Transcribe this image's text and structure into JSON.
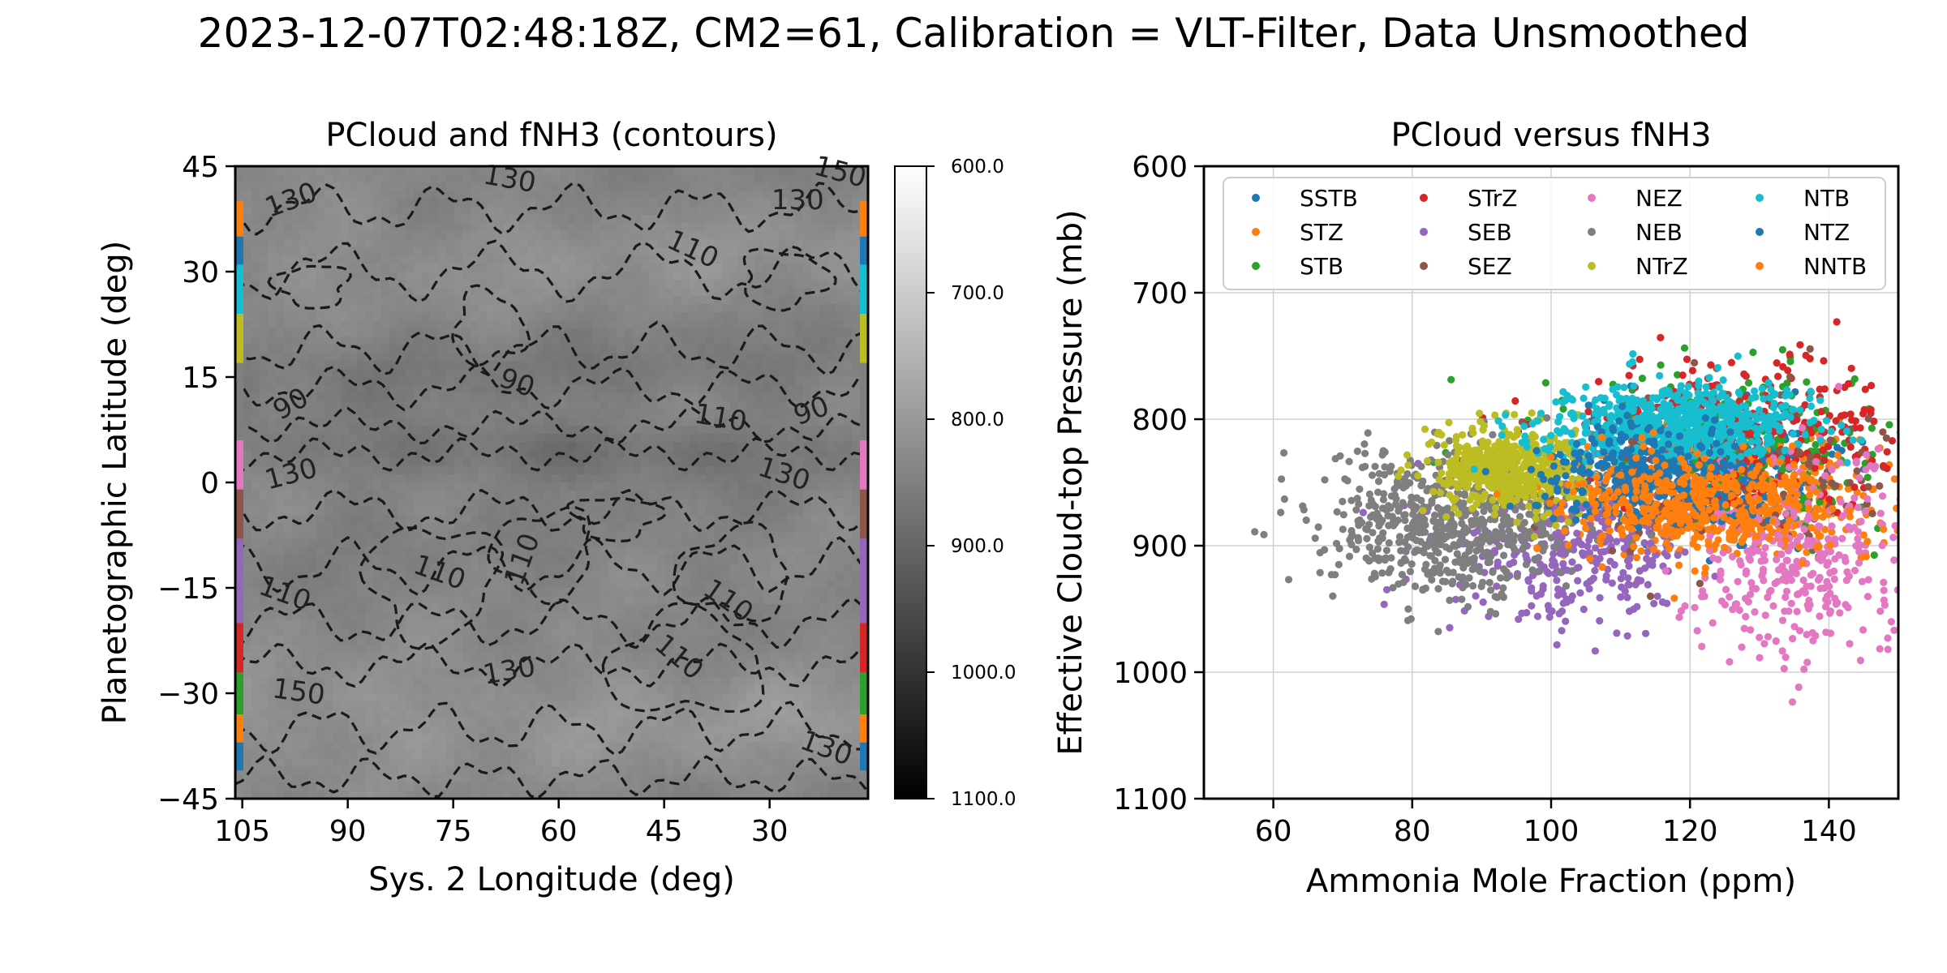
{
  "suptitle": "2023-12-07T02:48:18Z, CM2=61, Calibration = VLT-Filter, Data Unsmoothed",
  "chart_data": [
    {
      "type": "heatmap",
      "title": "PCloud and fNH3 (contours)",
      "xlabel": "Sys. 2 Longitude (deg)",
      "ylabel": "Planetographic Latitude (deg)",
      "xlim": [
        106,
        16
      ],
      "ylim": [
        -45,
        45
      ],
      "xticks": [
        105,
        90,
        75,
        60,
        45,
        30
      ],
      "xtick_labels": [
        "105",
        "90",
        "75",
        "60",
        "45",
        "30"
      ],
      "yticks": [
        45,
        30,
        15,
        0,
        -15,
        -30,
        -45
      ],
      "ytick_labels": [
        "45",
        "30",
        "15",
        "0",
        "−15",
        "−30",
        "−45"
      ],
      "colormap": "gray_r",
      "colorbar": {
        "range": [
          600,
          1100
        ],
        "ticks": [
          600,
          700,
          800,
          900,
          1000,
          1100
        ],
        "tick_labels": [
          "600.0",
          "700.0",
          "800.0",
          "900.0",
          "1000.0",
          "1100.0"
        ]
      },
      "contour_style": "dashed",
      "contour_labels": [
        {
          "text": "130",
          "lon": 98,
          "lat": 40
        },
        {
          "text": "130",
          "lon": 67,
          "lat": 43
        },
        {
          "text": "130",
          "lon": 26,
          "lat": 40
        },
        {
          "text": "150",
          "lon": 20,
          "lat": 44
        },
        {
          "text": "110",
          "lon": 41,
          "lat": 33
        },
        {
          "text": "90",
          "lon": 66,
          "lat": 14
        },
        {
          "text": "90",
          "lon": 98,
          "lat": 11
        },
        {
          "text": "90",
          "lon": 24,
          "lat": 10
        },
        {
          "text": "110",
          "lon": 37,
          "lat": 9
        },
        {
          "text": "130",
          "lon": 28,
          "lat": 1
        },
        {
          "text": "130",
          "lon": 98,
          "lat": 1
        },
        {
          "text": "110",
          "lon": 65,
          "lat": -11
        },
        {
          "text": "110",
          "lon": 77,
          "lat": -13
        },
        {
          "text": "110",
          "lon": 36,
          "lat": -17
        },
        {
          "text": "110",
          "lon": 99,
          "lat": -16
        },
        {
          "text": "110",
          "lon": 43,
          "lat": -25
        },
        {
          "text": "130",
          "lon": 67,
          "lat": -27
        },
        {
          "text": "150",
          "lon": 97,
          "lat": -30
        },
        {
          "text": "130",
          "lon": 22,
          "lat": -38
        }
      ],
      "belt_colors": [
        {
          "name": "SSTB",
          "lat": [
            -41,
            -37
          ],
          "color": "#1f77b4"
        },
        {
          "name": "STZ",
          "lat": [
            -37,
            -33
          ],
          "color": "#ff7f0e"
        },
        {
          "name": "STB",
          "lat": [
            -33,
            -27
          ],
          "color": "#2ca02c"
        },
        {
          "name": "STrZ",
          "lat": [
            -27,
            -20
          ],
          "color": "#d62728"
        },
        {
          "name": "SEB",
          "lat": [
            -20,
            -8
          ],
          "color": "#9467bd"
        },
        {
          "name": "SEZ",
          "lat": [
            -8,
            -1
          ],
          "color": "#8c564b"
        },
        {
          "name": "NEZ",
          "lat": [
            -1,
            6
          ],
          "color": "#e377c2"
        },
        {
          "name": "NEB",
          "lat": [
            6,
            17
          ],
          "color": "#7f7f7f"
        },
        {
          "name": "NTrZ",
          "lat": [
            17,
            24
          ],
          "color": "#bcbd22"
        },
        {
          "name": "NTB",
          "lat": [
            24,
            31
          ],
          "color": "#17becf"
        },
        {
          "name": "NTZ",
          "lat": [
            31,
            35
          ],
          "color": "#1f77b4"
        },
        {
          "name": "NNTB",
          "lat": [
            35,
            40
          ],
          "color": "#ff7f0e"
        }
      ]
    },
    {
      "type": "scatter",
      "title": "PCloud versus fNH3",
      "xlabel": "Ammonia Mole Fraction (ppm)",
      "ylabel": "Effective Cloud-top Pressure (mb)",
      "xlim": [
        50,
        150
      ],
      "ylim": [
        1100,
        600
      ],
      "xticks": [
        60,
        80,
        100,
        120,
        140
      ],
      "yticks": [
        600,
        700,
        800,
        900,
        1000,
        1100
      ],
      "grid": true,
      "legend_placement": "top",
      "legend_columns": 4,
      "series": [
        {
          "name": "SSTB",
          "color": "#1f77b4",
          "x_center": 122,
          "x_spread": 9,
          "y_center": 840,
          "y_spread": 25,
          "n": 320
        },
        {
          "name": "STZ",
          "color": "#ff7f0e",
          "x_center": 126,
          "x_spread": 12,
          "y_center": 863,
          "y_spread": 24,
          "n": 450
        },
        {
          "name": "STB",
          "color": "#2ca02c",
          "x_center": 128,
          "x_spread": 14,
          "y_center": 820,
          "y_spread": 30,
          "n": 260
        },
        {
          "name": "STrZ",
          "color": "#d62728",
          "x_center": 128,
          "x_spread": 15,
          "y_center": 810,
          "y_spread": 28,
          "n": 320
        },
        {
          "name": "SEB",
          "color": "#9467bd",
          "x_center": 103,
          "x_spread": 9,
          "y_center": 900,
          "y_spread": 28,
          "n": 360
        },
        {
          "name": "SEZ",
          "color": "#8c564b",
          "x_center": 125,
          "x_spread": 12,
          "y_center": 850,
          "y_spread": 30,
          "n": 150
        },
        {
          "name": "NEZ",
          "color": "#e377c2",
          "x_center": 136,
          "x_spread": 8,
          "y_center": 910,
          "y_spread": 42,
          "n": 360
        },
        {
          "name": "NEB",
          "color": "#7f7f7f",
          "x_center": 85,
          "x_spread": 9,
          "y_center": 882,
          "y_spread": 28,
          "n": 620
        },
        {
          "name": "NTrZ",
          "color": "#bcbd22",
          "x_center": 94,
          "x_spread": 5,
          "y_center": 840,
          "y_spread": 16,
          "n": 520
        },
        {
          "name": "NTB",
          "color": "#17becf",
          "x_center": 118,
          "x_spread": 9,
          "y_center": 805,
          "y_spread": 16,
          "n": 650
        },
        {
          "name": "NTZ",
          "color": "#1f77b4",
          "x_center": 114,
          "x_spread": 8,
          "y_center": 845,
          "y_spread": 20,
          "n": 320
        },
        {
          "name": "NNTB",
          "color": "#ff7f0e",
          "x_center": 122,
          "x_spread": 10,
          "y_center": 866,
          "y_spread": 20,
          "n": 360
        }
      ]
    }
  ]
}
